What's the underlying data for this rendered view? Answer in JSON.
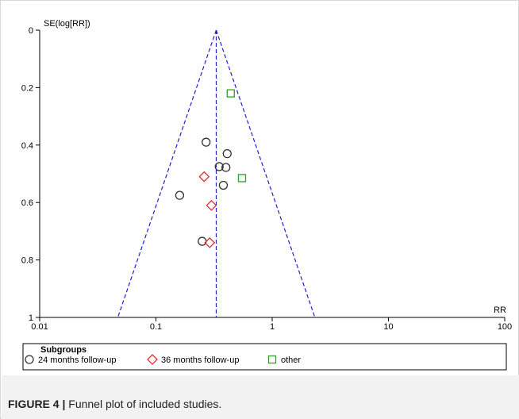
{
  "caption": {
    "label": "FIGURE 4 |",
    "text": " Funnel plot of included studies."
  },
  "colors": {
    "axis": "#000000",
    "reference": "#1f1fd0",
    "series_24": "#333333",
    "series_36": "#e03030",
    "series_other": "#2aa02a",
    "caption_band": "#f2f2f2"
  },
  "chart_data": {
    "type": "scatter",
    "title": "",
    "xlabel": "RR",
    "ylabel": "SE(log[RR])",
    "x_scale": "log",
    "xlim": [
      0.01,
      100
    ],
    "ylim": [
      0,
      1
    ],
    "y_reversed": true,
    "x_ticks": [
      {
        "value": 0.01,
        "label": "0.01"
      },
      {
        "value": 0.1,
        "label": "0.1"
      },
      {
        "value": 1,
        "label": "1"
      },
      {
        "value": 10,
        "label": "10"
      },
      {
        "value": 100,
        "label": "100"
      }
    ],
    "y_ticks": [
      {
        "value": 0,
        "label": "0"
      },
      {
        "value": 0.2,
        "label": "0.2"
      },
      {
        "value": 0.4,
        "label": "0.4"
      },
      {
        "value": 0.6,
        "label": "0.6"
      },
      {
        "value": 0.8,
        "label": "0.8"
      },
      {
        "value": 1,
        "label": "1"
      }
    ],
    "pooled_rr": 0.33,
    "funnel": {
      "apex_se": 0,
      "left_rr_at_se1": 0.047,
      "right_rr_at_se1": 2.33
    },
    "grid": false,
    "legend": {
      "title": "Subgroups",
      "position": "bottom"
    },
    "series": [
      {
        "name": "24 months follow-up",
        "marker": "circle",
        "points": [
          {
            "x": 0.27,
            "y": 0.39
          },
          {
            "x": 0.41,
            "y": 0.43
          },
          {
            "x": 0.35,
            "y": 0.475
          },
          {
            "x": 0.4,
            "y": 0.478
          },
          {
            "x": 0.38,
            "y": 0.54
          },
          {
            "x": 0.16,
            "y": 0.575
          },
          {
            "x": 0.25,
            "y": 0.735
          }
        ]
      },
      {
        "name": "36 months follow-up",
        "marker": "diamond",
        "points": [
          {
            "x": 0.26,
            "y": 0.51
          },
          {
            "x": 0.3,
            "y": 0.61
          },
          {
            "x": 0.29,
            "y": 0.74
          }
        ]
      },
      {
        "name": "other",
        "marker": "square",
        "points": [
          {
            "x": 0.44,
            "y": 0.22
          },
          {
            "x": 0.55,
            "y": 0.515
          }
        ]
      }
    ]
  }
}
